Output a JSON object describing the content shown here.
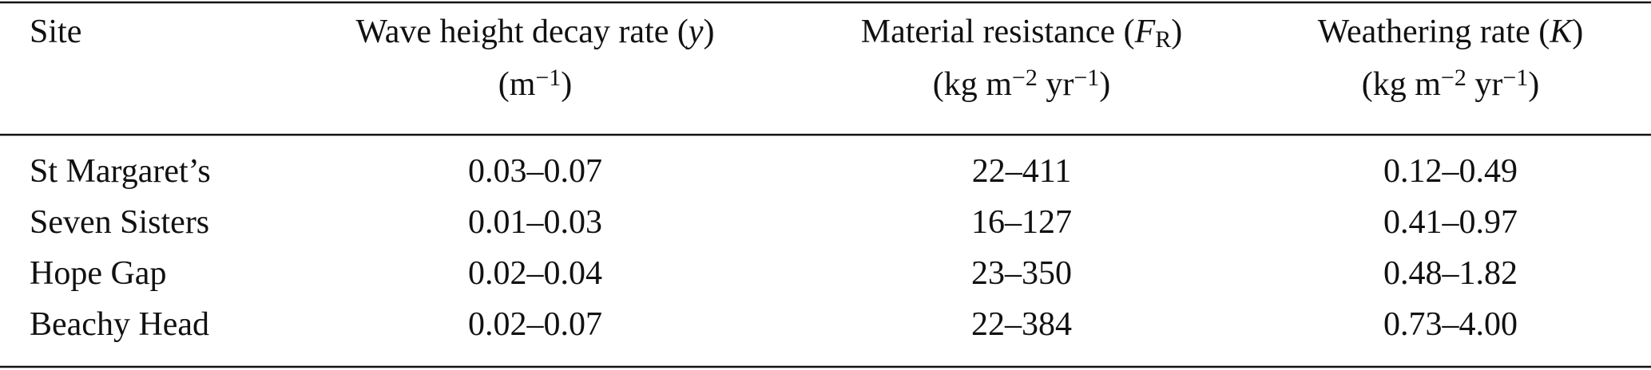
{
  "table": {
    "columns": [
      {
        "lines": [
          [
            {
              "text": "Site"
            }
          ]
        ]
      },
      {
        "lines": [
          [
            {
              "text": "Wave height decay rate ("
            },
            {
              "text": "y",
              "style": "italic"
            },
            {
              "text": ")"
            }
          ],
          [
            {
              "text": "(m"
            },
            {
              "text": "−1",
              "style": "sup"
            },
            {
              "text": ")"
            }
          ]
        ]
      },
      {
        "lines": [
          [
            {
              "text": "Material resistance ("
            },
            {
              "text": "F",
              "style": "italic"
            },
            {
              "text": "R",
              "style": "sub"
            },
            {
              "text": ")"
            }
          ],
          [
            {
              "text": "(kg m"
            },
            {
              "text": "−2",
              "style": "sup"
            },
            {
              "text": " yr"
            },
            {
              "text": "−1",
              "style": "sup"
            },
            {
              "text": ")"
            }
          ]
        ]
      },
      {
        "lines": [
          [
            {
              "text": "Weathering rate ("
            },
            {
              "text": "K",
              "style": "italic"
            },
            {
              "text": ")"
            }
          ],
          [
            {
              "text": "(kg m"
            },
            {
              "text": "−2",
              "style": "sup"
            },
            {
              "text": " yr"
            },
            {
              "text": "−1",
              "style": "sup"
            },
            {
              "text": ")"
            }
          ]
        ]
      }
    ],
    "rows": [
      [
        "St Margaret’s",
        "0.03–0.07",
        "22–411",
        "0.12–0.49"
      ],
      [
        "Seven Sisters",
        "0.01–0.03",
        "16–127",
        "0.41–0.97"
      ],
      [
        "Hope Gap",
        "0.02–0.04",
        "23–350",
        "0.48–1.82"
      ],
      [
        "Beachy Head",
        "0.02–0.07",
        "22–384",
        "0.73–4.00"
      ]
    ]
  }
}
